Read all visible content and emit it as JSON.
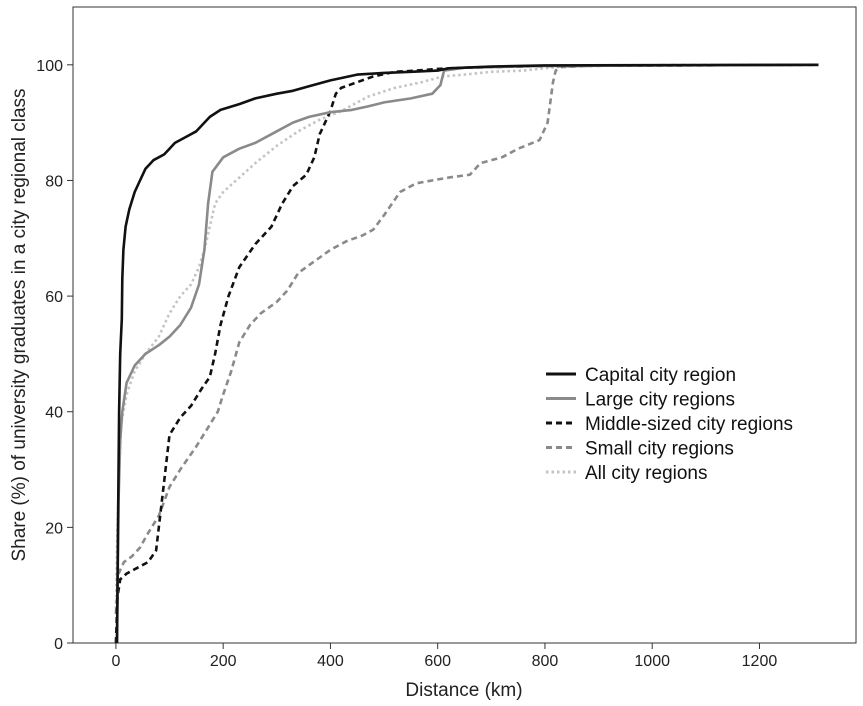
{
  "chart_data": {
    "type": "line",
    "title": "",
    "xlabel": "Distance (km)",
    "ylabel": "Share (%) of university graduates in a city regional class",
    "xlim": [
      -80,
      1380
    ],
    "ylim": [
      0,
      110
    ],
    "xticks": [
      0,
      200,
      400,
      600,
      800,
      1000,
      1200
    ],
    "yticks": [
      0,
      20,
      40,
      60,
      80,
      100
    ],
    "grid": false,
    "legend_position": "right",
    "series": [
      {
        "name": "Capital city region",
        "color": "#111111",
        "dash": "solid",
        "points": [
          [
            2,
            0
          ],
          [
            4,
            20
          ],
          [
            6,
            40
          ],
          [
            8,
            50
          ],
          [
            11,
            56
          ],
          [
            12,
            63
          ],
          [
            14,
            68
          ],
          [
            18,
            72
          ],
          [
            25,
            75
          ],
          [
            35,
            78
          ],
          [
            45,
            80
          ],
          [
            55,
            82
          ],
          [
            70,
            83.5
          ],
          [
            90,
            84.5
          ],
          [
            100,
            85.5
          ],
          [
            110,
            86.5
          ],
          [
            130,
            87.5
          ],
          [
            150,
            88.5
          ],
          [
            160,
            89.5
          ],
          [
            175,
            91
          ],
          [
            195,
            92.2
          ],
          [
            230,
            93.2
          ],
          [
            260,
            94.2
          ],
          [
            300,
            95
          ],
          [
            330,
            95.5
          ],
          [
            360,
            96.3
          ],
          [
            400,
            97.3
          ],
          [
            450,
            98.3
          ],
          [
            500,
            98.6
          ],
          [
            550,
            98.8
          ],
          [
            600,
            99
          ],
          [
            620,
            99.4
          ],
          [
            700,
            99.7
          ],
          [
            800,
            99.9
          ],
          [
            1310,
            100
          ]
        ]
      },
      {
        "name": "Large city regions",
        "color": "#8a8a8a",
        "dash": "solid",
        "points": [
          [
            2,
            0
          ],
          [
            5,
            25
          ],
          [
            8,
            35
          ],
          [
            12,
            40
          ],
          [
            20,
            45
          ],
          [
            35,
            48
          ],
          [
            55,
            50
          ],
          [
            80,
            51.5
          ],
          [
            100,
            53
          ],
          [
            120,
            55
          ],
          [
            140,
            58
          ],
          [
            155,
            62
          ],
          [
            165,
            68
          ],
          [
            172,
            76
          ],
          [
            180,
            81.5
          ],
          [
            200,
            84
          ],
          [
            230,
            85.5
          ],
          [
            260,
            86.5
          ],
          [
            300,
            88.5
          ],
          [
            330,
            90
          ],
          [
            360,
            91
          ],
          [
            400,
            91.8
          ],
          [
            440,
            92.2
          ],
          [
            470,
            92.8
          ],
          [
            500,
            93.5
          ],
          [
            550,
            94.2
          ],
          [
            590,
            95
          ],
          [
            605,
            96.5
          ],
          [
            612,
            99
          ],
          [
            650,
            99.5
          ],
          [
            700,
            99.6
          ],
          [
            800,
            99.8
          ],
          [
            1310,
            100
          ]
        ]
      },
      {
        "name": "Middle-sized city regions",
        "color": "#111111",
        "dash": "dashed",
        "points": [
          [
            0,
            0
          ],
          [
            3,
            8
          ],
          [
            8,
            11
          ],
          [
            20,
            12
          ],
          [
            40,
            13
          ],
          [
            60,
            14
          ],
          [
            75,
            16
          ],
          [
            80,
            20
          ],
          [
            90,
            28
          ],
          [
            100,
            36
          ],
          [
            120,
            39
          ],
          [
            140,
            41
          ],
          [
            160,
            44
          ],
          [
            175,
            46
          ],
          [
            185,
            50
          ],
          [
            195,
            55
          ],
          [
            210,
            60
          ],
          [
            230,
            65
          ],
          [
            260,
            69
          ],
          [
            290,
            72
          ],
          [
            310,
            76
          ],
          [
            330,
            79
          ],
          [
            355,
            81
          ],
          [
            370,
            84
          ],
          [
            380,
            88
          ],
          [
            390,
            90
          ],
          [
            400,
            92
          ],
          [
            410,
            95
          ],
          [
            420,
            96
          ],
          [
            450,
            97
          ],
          [
            480,
            98
          ],
          [
            520,
            98.8
          ],
          [
            560,
            99
          ],
          [
            600,
            99.3
          ],
          [
            650,
            99.5
          ],
          [
            700,
            99.6
          ],
          [
            800,
            99.8
          ],
          [
            1310,
            100
          ]
        ]
      },
      {
        "name": "Small city regions",
        "color": "#8a8a8a",
        "dash": "dashed",
        "points": [
          [
            0,
            5
          ],
          [
            5,
            12
          ],
          [
            15,
            14
          ],
          [
            30,
            15
          ],
          [
            45,
            16.5
          ],
          [
            60,
            19
          ],
          [
            80,
            22
          ],
          [
            100,
            27
          ],
          [
            120,
            30
          ],
          [
            150,
            34
          ],
          [
            170,
            37
          ],
          [
            190,
            40
          ],
          [
            200,
            43
          ],
          [
            215,
            47
          ],
          [
            230,
            52
          ],
          [
            250,
            55
          ],
          [
            270,
            57
          ],
          [
            300,
            59
          ],
          [
            320,
            61
          ],
          [
            340,
            64
          ],
          [
            370,
            66
          ],
          [
            400,
            68
          ],
          [
            430,
            69.5
          ],
          [
            460,
            70.5
          ],
          [
            480,
            71.5
          ],
          [
            500,
            74
          ],
          [
            530,
            78
          ],
          [
            560,
            79.5
          ],
          [
            620,
            80.5
          ],
          [
            660,
            81
          ],
          [
            680,
            83
          ],
          [
            720,
            84
          ],
          [
            750,
            85.5
          ],
          [
            790,
            87
          ],
          [
            805,
            90
          ],
          [
            815,
            97
          ],
          [
            820,
            99
          ],
          [
            830,
            99.6
          ],
          [
            900,
            99.9
          ],
          [
            1310,
            100
          ]
        ]
      },
      {
        "name": "All city regions",
        "color": "#c4c4c4",
        "dash": "dotted",
        "points": [
          [
            0,
            6
          ],
          [
            3,
            20
          ],
          [
            6,
            30
          ],
          [
            10,
            38
          ],
          [
            20,
            43
          ],
          [
            35,
            47
          ],
          [
            55,
            50
          ],
          [
            80,
            53
          ],
          [
            100,
            57
          ],
          [
            120,
            60
          ],
          [
            140,
            62
          ],
          [
            155,
            65
          ],
          [
            165,
            68
          ],
          [
            175,
            72
          ],
          [
            185,
            76
          ],
          [
            200,
            78
          ],
          [
            230,
            80.5
          ],
          [
            260,
            83
          ],
          [
            300,
            86
          ],
          [
            340,
            88.5
          ],
          [
            380,
            90.5
          ],
          [
            420,
            92
          ],
          [
            470,
            94.5
          ],
          [
            520,
            96
          ],
          [
            570,
            97
          ],
          [
            610,
            98
          ],
          [
            650,
            98.3
          ],
          [
            700,
            98.8
          ],
          [
            760,
            99
          ],
          [
            820,
            99.6
          ],
          [
            900,
            99.9
          ],
          [
            1310,
            100
          ]
        ]
      }
    ]
  }
}
